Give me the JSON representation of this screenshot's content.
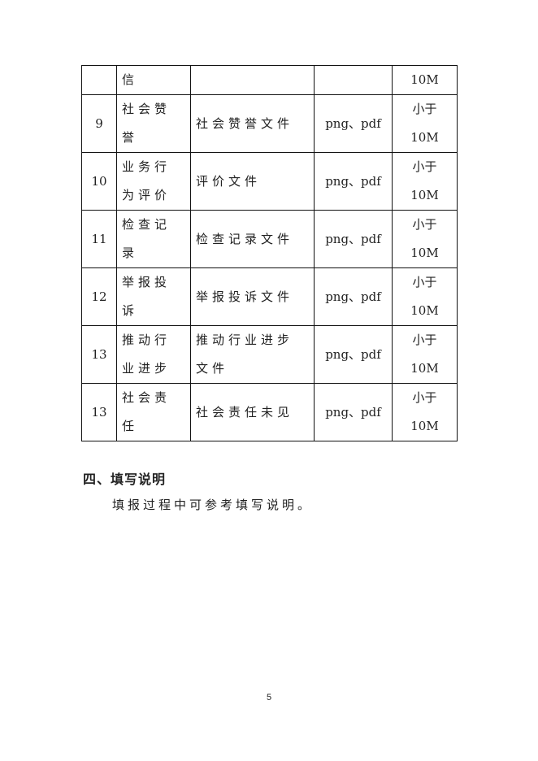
{
  "table": {
    "rows": [
      {
        "num": "",
        "name": "信",
        "desc": "",
        "format": "",
        "size": "10M",
        "partial": true
      },
      {
        "num": "9",
        "name": "社会赞誉",
        "desc": "社会赞誉文件",
        "format": "png、pdf",
        "size": "小于 10M"
      },
      {
        "num": "10",
        "name": "业务行为评价",
        "desc": "评价文件",
        "format": "png、pdf",
        "size": "小于 10M"
      },
      {
        "num": "11",
        "name": "检查记录",
        "desc": "检查记录文件",
        "format": "png、pdf",
        "size": "小于 10M"
      },
      {
        "num": "12",
        "name": "举报投诉",
        "desc": "举报投诉文件",
        "format": "png、pdf",
        "size": "小于 10M"
      },
      {
        "num": "13",
        "name": "推动行业进步",
        "desc": "推动行业进步文件",
        "format": "png、pdf",
        "size": "小于 10M"
      },
      {
        "num": "13",
        "name": "社会责任",
        "desc": "社会责任未见",
        "format": "png、pdf",
        "size": "小于 10M"
      }
    ]
  },
  "section": {
    "heading": "四、填写说明",
    "paragraph": "填报过程中可参考填写说明。"
  },
  "page_number": "5"
}
